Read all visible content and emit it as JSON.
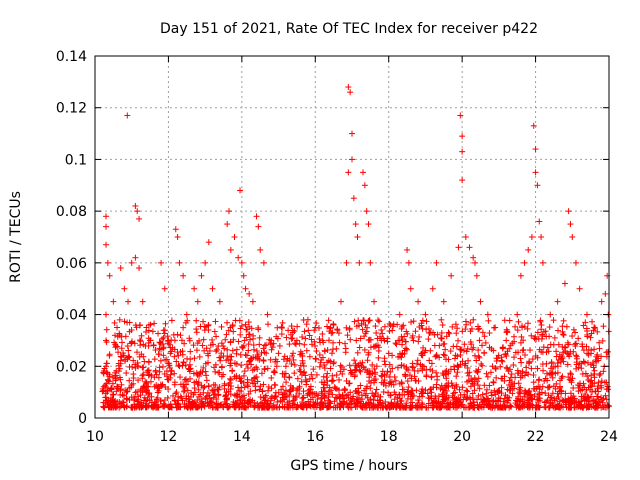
{
  "chart_data": {
    "type": "scatter",
    "title": "Day 151 of 2021, Rate Of TEC Index for receiver p422",
    "xlabel": "GPS time / hours",
    "ylabel": "ROTI / TECUs",
    "xlim": [
      10,
      24
    ],
    "ylim": [
      0,
      0.14
    ],
    "x_ticks": [
      10,
      12,
      14,
      16,
      18,
      20,
      22,
      24
    ],
    "y_ticks": [
      0,
      0.02,
      0.04,
      0.06,
      0.08,
      0.1,
      0.12,
      0.14
    ],
    "x_tick_labels": [
      "10",
      "12",
      "14",
      "16",
      "18",
      "20",
      "22",
      "24"
    ],
    "y_tick_labels": [
      "0",
      "0.02",
      "0.04",
      "0.06",
      "0.08",
      "0.1",
      "0.12",
      "0.14"
    ],
    "grid": true,
    "marker": "+",
    "color": "#ff0000",
    "series": [
      {
        "name": "ROTI",
        "points": [
          [
            10.3,
            0.078
          ],
          [
            10.3,
            0.074
          ],
          [
            10.3,
            0.067
          ],
          [
            10.35,
            0.06
          ],
          [
            10.4,
            0.055
          ],
          [
            10.3,
            0.04
          ],
          [
            10.3,
            0.03
          ],
          [
            10.3,
            0.02
          ],
          [
            10.3,
            0.012
          ],
          [
            10.3,
            0.008
          ],
          [
            10.5,
            0.045
          ],
          [
            10.6,
            0.035
          ],
          [
            10.7,
            0.058
          ],
          [
            10.8,
            0.05
          ],
          [
            10.88,
            0.117
          ],
          [
            10.9,
            0.045
          ],
          [
            11.0,
            0.06
          ],
          [
            11.1,
            0.082
          ],
          [
            11.15,
            0.08
          ],
          [
            11.2,
            0.077
          ],
          [
            11.1,
            0.062
          ],
          [
            11.2,
            0.058
          ],
          [
            11.3,
            0.045
          ],
          [
            11.4,
            0.035
          ],
          [
            11.5,
            0.03
          ],
          [
            11.6,
            0.028
          ],
          [
            11.8,
            0.06
          ],
          [
            11.9,
            0.05
          ],
          [
            12.0,
            0.03
          ],
          [
            12.2,
            0.073
          ],
          [
            12.25,
            0.07
          ],
          [
            12.3,
            0.06
          ],
          [
            12.4,
            0.055
          ],
          [
            12.5,
            0.04
          ],
          [
            12.7,
            0.05
          ],
          [
            12.8,
            0.045
          ],
          [
            12.9,
            0.055
          ],
          [
            13.0,
            0.06
          ],
          [
            13.1,
            0.068
          ],
          [
            13.2,
            0.05
          ],
          [
            13.4,
            0.045
          ],
          [
            13.6,
            0.075
          ],
          [
            13.65,
            0.08
          ],
          [
            13.7,
            0.065
          ],
          [
            13.8,
            0.07
          ],
          [
            13.9,
            0.062
          ],
          [
            13.95,
            0.088
          ],
          [
            14.0,
            0.06
          ],
          [
            14.05,
            0.055
          ],
          [
            14.1,
            0.05
          ],
          [
            14.2,
            0.048
          ],
          [
            14.3,
            0.045
          ],
          [
            14.4,
            0.078
          ],
          [
            14.45,
            0.074
          ],
          [
            14.5,
            0.065
          ],
          [
            14.6,
            0.06
          ],
          [
            14.7,
            0.04
          ],
          [
            14.8,
            0.03
          ],
          [
            15.0,
            0.025
          ],
          [
            15.2,
            0.02
          ],
          [
            15.5,
            0.03
          ],
          [
            15.8,
            0.038
          ],
          [
            16.0,
            0.035
          ],
          [
            16.2,
            0.03
          ],
          [
            16.5,
            0.036
          ],
          [
            16.7,
            0.045
          ],
          [
            16.85,
            0.06
          ],
          [
            16.9,
            0.128
          ],
          [
            16.95,
            0.126
          ],
          [
            17.0,
            0.11
          ],
          [
            16.9,
            0.095
          ],
          [
            17.0,
            0.1
          ],
          [
            17.05,
            0.085
          ],
          [
            17.1,
            0.075
          ],
          [
            17.15,
            0.07
          ],
          [
            17.2,
            0.06
          ],
          [
            17.3,
            0.095
          ],
          [
            17.35,
            0.09
          ],
          [
            17.4,
            0.08
          ],
          [
            17.45,
            0.075
          ],
          [
            17.5,
            0.06
          ],
          [
            17.6,
            0.045
          ],
          [
            17.8,
            0.03
          ],
          [
            18.0,
            0.025
          ],
          [
            18.3,
            0.04
          ],
          [
            18.5,
            0.065
          ],
          [
            18.55,
            0.06
          ],
          [
            18.6,
            0.05
          ],
          [
            18.8,
            0.045
          ],
          [
            19.0,
            0.04
          ],
          [
            19.2,
            0.05
          ],
          [
            19.3,
            0.06
          ],
          [
            19.5,
            0.045
          ],
          [
            19.7,
            0.055
          ],
          [
            19.9,
            0.066
          ],
          [
            19.95,
            0.117
          ],
          [
            20.0,
            0.109
          ],
          [
            20.0,
            0.103
          ],
          [
            20.0,
            0.092
          ],
          [
            20.1,
            0.07
          ],
          [
            20.2,
            0.066
          ],
          [
            20.3,
            0.062
          ],
          [
            20.35,
            0.06
          ],
          [
            20.4,
            0.055
          ],
          [
            20.5,
            0.045
          ],
          [
            20.7,
            0.04
          ],
          [
            20.9,
            0.035
          ],
          [
            21.2,
            0.03
          ],
          [
            21.5,
            0.04
          ],
          [
            21.6,
            0.055
          ],
          [
            21.7,
            0.06
          ],
          [
            21.8,
            0.065
          ],
          [
            21.9,
            0.07
          ],
          [
            21.95,
            0.113
          ],
          [
            22.0,
            0.104
          ],
          [
            22.0,
            0.095
          ],
          [
            22.05,
            0.09
          ],
          [
            22.1,
            0.076
          ],
          [
            22.15,
            0.07
          ],
          [
            22.2,
            0.06
          ],
          [
            22.4,
            0.04
          ],
          [
            22.6,
            0.045
          ],
          [
            22.8,
            0.052
          ],
          [
            22.9,
            0.08
          ],
          [
            22.95,
            0.075
          ],
          [
            23.0,
            0.07
          ],
          [
            23.1,
            0.06
          ],
          [
            23.2,
            0.05
          ],
          [
            23.4,
            0.04
          ],
          [
            23.6,
            0.035
          ],
          [
            23.8,
            0.045
          ],
          [
            23.9,
            0.048
          ],
          [
            23.95,
            0.055
          ],
          [
            23.98,
            0.04
          ]
        ]
      }
    ]
  }
}
